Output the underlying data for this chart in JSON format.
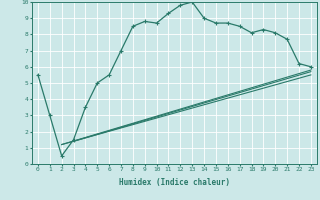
{
  "main_x": [
    0,
    1,
    2,
    3,
    4,
    5,
    6,
    7,
    8,
    9,
    10,
    11,
    12,
    13,
    14,
    15,
    16,
    17,
    18,
    19,
    20,
    21,
    22,
    23
  ],
  "main_y": [
    5.5,
    3.0,
    0.5,
    1.5,
    3.5,
    5.0,
    5.5,
    7.0,
    8.5,
    8.8,
    8.7,
    9.3,
    9.8,
    10.0,
    9.0,
    8.7,
    8.7,
    8.5,
    8.1,
    8.3,
    8.1,
    7.7,
    6.2,
    6.0
  ],
  "line1_x": [
    2,
    23
  ],
  "line1_y": [
    1.2,
    5.8
  ],
  "line2_x": [
    2,
    23
  ],
  "line2_y": [
    1.2,
    5.5
  ],
  "line3_x": [
    3,
    23
  ],
  "line3_y": [
    1.4,
    5.7
  ],
  "color": "#2a7a6a",
  "bg_color": "#cce8e8",
  "grid_color": "#ffffff",
  "xlabel": "Humidex (Indice chaleur)",
  "xlim": [
    -0.5,
    23.5
  ],
  "ylim": [
    0,
    10
  ],
  "xticks": [
    0,
    1,
    2,
    3,
    4,
    5,
    6,
    7,
    8,
    9,
    10,
    11,
    12,
    13,
    14,
    15,
    16,
    17,
    18,
    19,
    20,
    21,
    22,
    23
  ],
  "yticks": [
    0,
    1,
    2,
    3,
    4,
    5,
    6,
    7,
    8,
    9,
    10
  ]
}
